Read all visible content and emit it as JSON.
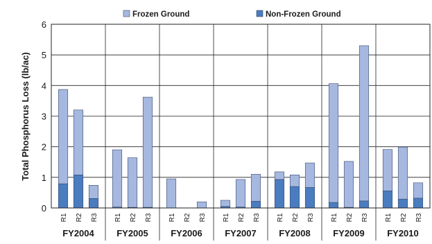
{
  "chart_data": {
    "type": "bar",
    "stacked": true,
    "ylabel": "Total Phosphorus Loss (lb/ac)",
    "xlabel": "",
    "ylim": [
      0,
      6
    ],
    "yticks": [
      0,
      1,
      2,
      3,
      4,
      5,
      6
    ],
    "grid": "horizontal and vertical group separators",
    "legend_position": "top",
    "groups": [
      "FY2004",
      "FY2005",
      "FY2006",
      "FY2007",
      "FY2008",
      "FY2009",
      "FY2010"
    ],
    "bars_per_group": [
      "R1",
      "R2",
      "R3"
    ],
    "series": [
      {
        "name": "Frozen Ground",
        "color": "#a6b8e0",
        "values": [
          [
            3.08,
            2.12,
            0.43
          ],
          [
            1.87,
            1.62,
            3.6
          ],
          [
            0.95,
            0.0,
            0.2
          ],
          [
            0.2,
            0.9,
            0.88
          ],
          [
            0.25,
            0.38,
            0.8
          ],
          [
            3.88,
            1.5,
            5.07
          ],
          [
            1.35,
            1.7,
            0.5
          ]
        ]
      },
      {
        "name": "Non-Frozen Ground",
        "color": "#4a7cc0",
        "values": [
          [
            0.79,
            1.08,
            0.31
          ],
          [
            0.03,
            0.02,
            0.02
          ],
          [
            0.0,
            0.0,
            0.0
          ],
          [
            0.05,
            0.03,
            0.22
          ],
          [
            0.93,
            0.7,
            0.67
          ],
          [
            0.18,
            0.02,
            0.23
          ],
          [
            0.56,
            0.29,
            0.32
          ]
        ]
      }
    ]
  }
}
